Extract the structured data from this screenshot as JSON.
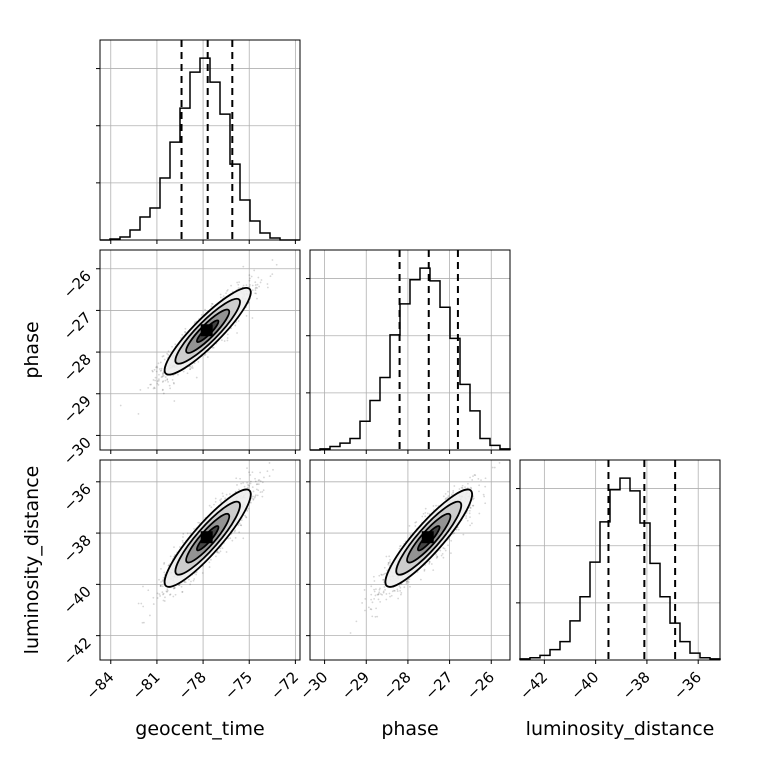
{
  "chart_data": {
    "type": "corner",
    "title": "",
    "parameters": [
      {
        "name": "geocent_time",
        "label": "geocent_time",
        "range": [
          -84.7,
          -71.7
        ],
        "ticks": [
          -84,
          -81,
          -78,
          -75,
          -72
        ],
        "tick_labels": [
          "−84",
          "−81",
          "−78",
          "−75",
          "−72"
        ],
        "quantiles": [
          -79.4,
          -77.7,
          -76.1
        ]
      },
      {
        "name": "phase",
        "label": "phase",
        "range": [
          -30.35,
          -25.55
        ],
        "ticks": [
          -30,
          -29,
          -28,
          -27,
          -26
        ],
        "tick_labels": [
          "−30",
          "−29",
          "−28",
          "−27",
          "−26"
        ],
        "quantiles": [
          -28.2,
          -27.5,
          -26.8
        ]
      },
      {
        "name": "luminosity_distance",
        "label": "luminosity_distance",
        "range": [
          -42.95,
          -35.15
        ],
        "ticks": [
          -42,
          -40,
          -38,
          -36
        ],
        "tick_labels": [
          "−42",
          "−40",
          "−38",
          "−36"
        ],
        "quantiles": [
          -39.5,
          -38.1,
          -36.9
        ]
      }
    ],
    "histograms": [
      {
        "param": "geocent_time",
        "edges": [
          -84.7,
          -84.05,
          -83.4,
          -82.75,
          -82.1,
          -81.45,
          -80.8,
          -80.15,
          -79.5,
          -78.85,
          -78.2,
          -77.55,
          -76.9,
          -76.25,
          -75.6,
          -74.95,
          -74.3,
          -73.65,
          -73.0,
          -72.35,
          -71.7
        ],
        "counts": [
          0,
          1,
          3,
          10,
          23,
          32,
          62,
          98,
          132,
          168,
          182,
          158,
          126,
          76,
          40,
          19,
          7,
          2,
          0,
          0
        ]
      },
      {
        "param": "phase",
        "edges": [
          -30.35,
          -30.11,
          -29.87,
          -29.63,
          -29.39,
          -29.15,
          -28.91,
          -28.67,
          -28.43,
          -28.19,
          -27.95,
          -27.71,
          -27.47,
          -27.23,
          -26.99,
          -26.75,
          -26.51,
          -26.27,
          -26.03,
          -25.79,
          -25.55
        ],
        "counts": [
          0,
          1,
          3,
          6,
          10,
          25,
          43,
          63,
          100,
          127,
          148,
          158,
          147,
          124,
          97,
          57,
          34,
          10,
          4,
          1
        ]
      },
      {
        "param": "luminosity_distance",
        "edges": [
          -42.95,
          -42.56,
          -42.17,
          -41.78,
          -41.39,
          -41.0,
          -40.61,
          -40.22,
          -39.83,
          -39.44,
          -39.05,
          -38.66,
          -38.27,
          -37.88,
          -37.49,
          -37.1,
          -36.71,
          -36.32,
          -35.93,
          -35.54,
          -35.15
        ],
        "counts": [
          1,
          2,
          4,
          9,
          16,
          34,
          55,
          85,
          120,
          148,
          158,
          147,
          119,
          84,
          55,
          32,
          16,
          6,
          2,
          1
        ]
      }
    ],
    "joint": [
      {
        "x": "geocent_time",
        "y": "phase",
        "center": [
          -77.7,
          -27.5
        ],
        "sd": [
          1.4,
          0.52
        ],
        "corr": 0.9
      },
      {
        "x": "geocent_time",
        "y": "luminosity_distance",
        "center": [
          -77.7,
          -38.2
        ],
        "sd": [
          1.4,
          0.95
        ],
        "corr": 0.9
      },
      {
        "x": "phase",
        "y": "luminosity_distance",
        "center": [
          -27.5,
          -38.2
        ],
        "sd": [
          0.52,
          0.95
        ],
        "corr": 0.9
      }
    ],
    "contour_levels": [
      0.5,
      1.0,
      1.5,
      2.0
    ],
    "grid": true
  }
}
